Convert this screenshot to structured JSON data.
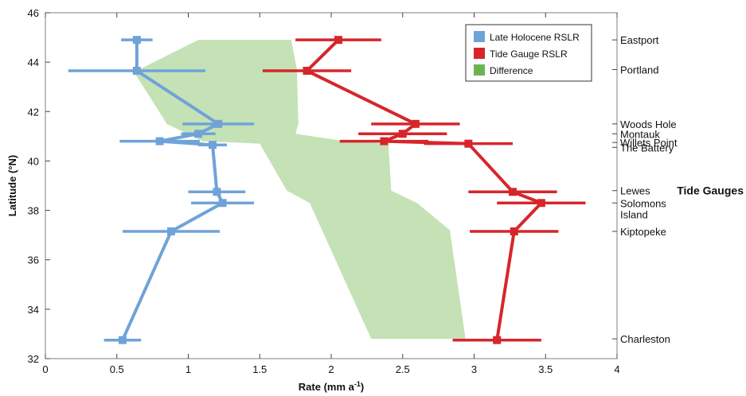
{
  "chart_data": {
    "type": "line",
    "title": "",
    "xlabel": "Rate (mm a",
    "xlabel_sup": "-1",
    "xlabel_close": ")",
    "ylabel": "Latitude (°N)",
    "xlim": [
      0,
      4
    ],
    "ylim": [
      32,
      46
    ],
    "xticks": [
      "0",
      "0.5",
      "1",
      "1.5",
      "2",
      "2.5",
      "3",
      "3.5",
      "4"
    ],
    "yticks": [
      "32",
      "34",
      "36",
      "38",
      "40",
      "42",
      "44",
      "46"
    ],
    "right_axis_title": "Tide Gauges",
    "tide_gauges": [
      {
        "lines": [
          "Eastport"
        ],
        "lat": 44.9
      },
      {
        "lines": [
          "Portland"
        ],
        "lat": 43.7
      },
      {
        "lines": [
          "Woods Hole"
        ],
        "lat": 41.5
      },
      {
        "lines": [
          "Montauk"
        ],
        "lat": 41.1
      },
      {
        "lines": [
          "Willets Point"
        ],
        "lat": 40.75
      },
      {
        "lines": [
          "The Battery"
        ],
        "lat": 40.55
      },
      {
        "lines": [
          "Lewes"
        ],
        "lat": 38.8
      },
      {
        "lines": [
          "Solomons",
          "Island"
        ],
        "lat": 38.3
      },
      {
        "lines": [
          "Kiptopeke"
        ],
        "lat": 37.15
      },
      {
        "lines": [
          "Charleston"
        ],
        "lat": 32.8
      }
    ],
    "legend": {
      "position": "top-right",
      "entries": [
        "Late Holocene RSLR",
        "Tide Gauge RSLR",
        "Difference"
      ]
    },
    "series": [
      {
        "name": "Late Holocene RSLR",
        "color": "#6fa3d8",
        "points": [
          {
            "lat": 44.9,
            "x": 0.64,
            "err": 0.11
          },
          {
            "lat": 43.65,
            "x": 0.64,
            "err": 0.48
          },
          {
            "lat": 41.5,
            "x": 1.21,
            "err": 0.25
          },
          {
            "lat": 41.1,
            "x": 1.07,
            "err": 0.12
          },
          {
            "lat": 40.8,
            "x": 0.8,
            "err": 0.28
          },
          {
            "lat": 40.65,
            "x": 1.17,
            "err": 0.1
          },
          {
            "lat": 38.75,
            "x": 1.2,
            "err": 0.2
          },
          {
            "lat": 38.3,
            "x": 1.24,
            "err": 0.22
          },
          {
            "lat": 37.15,
            "x": 0.88,
            "err": 0.34
          },
          {
            "lat": 32.75,
            "x": 0.54,
            "err": 0.13
          }
        ]
      },
      {
        "name": "Tide Gauge RSLR",
        "color": "#d6262b",
        "points": [
          {
            "lat": 44.9,
            "x": 2.05,
            "err": 0.3
          },
          {
            "lat": 43.65,
            "x": 1.83,
            "err": 0.31
          },
          {
            "lat": 41.5,
            "x": 2.59,
            "err": 0.31
          },
          {
            "lat": 41.1,
            "x": 2.5,
            "err": 0.31
          },
          {
            "lat": 40.8,
            "x": 2.37,
            "err": 0.31
          },
          {
            "lat": 40.7,
            "x": 2.96,
            "err": 0.31
          },
          {
            "lat": 38.75,
            "x": 3.27,
            "err": 0.31
          },
          {
            "lat": 38.3,
            "x": 3.47,
            "err": 0.31
          },
          {
            "lat": 37.15,
            "x": 3.28,
            "err": 0.31
          },
          {
            "lat": 32.75,
            "x": 3.16,
            "err": 0.31
          }
        ]
      }
    ],
    "difference_band": {
      "name": "Difference",
      "color": "#c4e2b5",
      "polygon": [
        [
          1.07,
          44.9
        ],
        [
          1.72,
          44.9
        ],
        [
          1.76,
          43.7
        ],
        [
          1.77,
          41.5
        ],
        [
          1.75,
          41.1
        ],
        [
          2.1,
          40.8
        ],
        [
          2.4,
          40.7
        ],
        [
          2.42,
          38.8
        ],
        [
          2.6,
          38.3
        ],
        [
          2.83,
          37.2
        ],
        [
          2.94,
          32.8
        ],
        [
          2.28,
          32.8
        ],
        [
          1.85,
          38.3
        ],
        [
          1.69,
          38.8
        ],
        [
          1.5,
          40.7
        ],
        [
          1.1,
          40.8
        ],
        [
          0.85,
          41.5
        ],
        [
          0.62,
          43.6
        ]
      ]
    }
  }
}
